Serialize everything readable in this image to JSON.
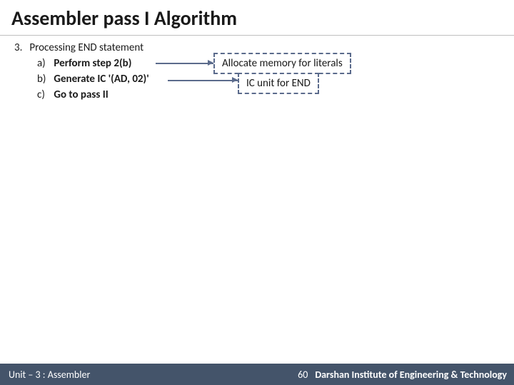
{
  "title": "Assembler pass I Algorithm",
  "main_number": "3.",
  "main_text": "Processing END statement",
  "subs": [
    {
      "letter": "a)",
      "text": "Perform step 2(b)"
    },
    {
      "letter": "b)",
      "text": "Generate IC '(AD, 02)'"
    },
    {
      "letter": "c)",
      "text": "Go to pass II"
    }
  ],
  "callouts": {
    "a": "Allocate memory for literals",
    "b": "IC unit for END"
  },
  "footer": {
    "left": "Unit – 3  : Assembler",
    "page": "60",
    "right": "Darshan Institute of Engineering & Technology"
  },
  "colors": {
    "callout_border": "#5b6b8c",
    "footer_bg": "#44546a",
    "text": "#1a1a1a",
    "rule": "#bfbfbf"
  }
}
